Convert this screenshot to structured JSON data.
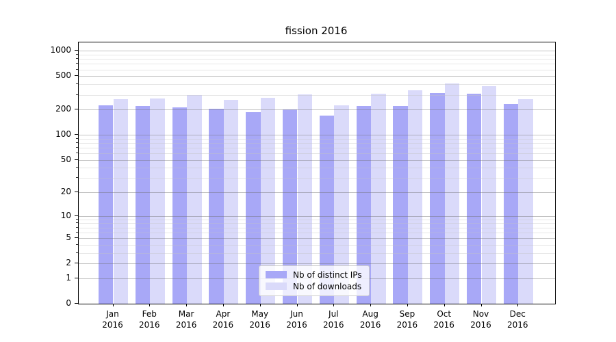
{
  "title": "fission 2016",
  "chart_data": {
    "type": "bar",
    "title": "fission 2016",
    "yscale": "symlog",
    "ylim": [
      0,
      1250
    ],
    "grid": true,
    "legend_position": "lower center",
    "categories": [
      "Jan 2016",
      "Feb 2016",
      "Mar 2016",
      "Apr 2016",
      "May 2016",
      "Jun 2016",
      "Jul 2016",
      "Aug 2016",
      "Sep 2016",
      "Oct 2016",
      "Nov 2016",
      "Dec 2016"
    ],
    "series": [
      {
        "name": "Nb of distinct IPs",
        "color": "#a8a8f7",
        "values": [
          225,
          221,
          214,
          205,
          186,
          201,
          170,
          221,
          220,
          316,
          309,
          233
        ]
      },
      {
        "name": "Nb of downloads",
        "color": "#dadafa",
        "values": [
          266,
          271,
          300,
          264,
          276,
          306,
          224,
          308,
          343,
          410,
          377,
          268
        ]
      }
    ],
    "y_ticks": [
      0,
      1,
      2,
      5,
      10,
      20,
      50,
      100,
      200,
      500,
      1000
    ],
    "y_minor_ticks": [
      3,
      4,
      6,
      7,
      8,
      9,
      30,
      40,
      60,
      70,
      80,
      90,
      300,
      400,
      600,
      700,
      800,
      900
    ]
  },
  "legend": {
    "items": [
      {
        "label": "Nb of distinct IPs",
        "color": "#a8a8f7"
      },
      {
        "label": "Nb of downloads",
        "color": "#dadafa"
      }
    ]
  },
  "colors": {
    "series_dark": "#a8a8f7",
    "series_light": "#dadafa",
    "grid_major": "#c3c3c3",
    "grid_minor": "#e9e9e9",
    "axis": "#000000"
  }
}
